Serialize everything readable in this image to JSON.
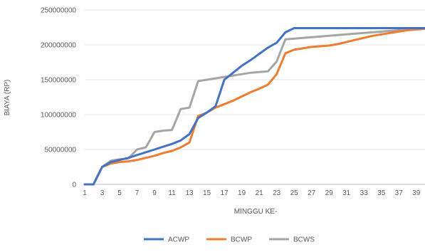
{
  "chart_data": {
    "type": "line",
    "title": "",
    "xlabel": "MINGGU KE-",
    "ylabel": "BIAYA (RP)",
    "x": [
      1,
      2,
      3,
      4,
      5,
      6,
      7,
      8,
      9,
      10,
      11,
      12,
      13,
      14,
      15,
      16,
      17,
      18,
      19,
      20,
      21,
      22,
      23,
      24,
      25,
      26,
      27,
      28,
      29,
      30,
      31,
      32,
      33,
      34,
      35,
      36,
      37,
      38,
      39,
      40
    ],
    "x_tick_labels": [
      "1",
      "3",
      "5",
      "7",
      "9",
      "11",
      "13",
      "15",
      "17",
      "19",
      "21",
      "23",
      "25",
      "27",
      "29",
      "31",
      "33",
      "35",
      "37",
      "39"
    ],
    "x_tick_values": [
      1,
      3,
      5,
      7,
      9,
      11,
      13,
      15,
      17,
      19,
      21,
      23,
      25,
      27,
      29,
      31,
      33,
      35,
      37,
      39
    ],
    "xlim": [
      1,
      40
    ],
    "ylim": [
      0,
      250000000
    ],
    "y_ticks": [
      0,
      50000000,
      100000000,
      150000000,
      200000000,
      250000000
    ],
    "y_tick_labels": [
      "0",
      "50000000",
      "100000000",
      "150000000",
      "200000000",
      "250000000"
    ],
    "grid": "horizontal",
    "legend": "bottom",
    "series": [
      {
        "name": "ACWP",
        "color": "#4472C4",
        "values": [
          0,
          0,
          25000000,
          32000000,
          35000000,
          38000000,
          42000000,
          46000000,
          50000000,
          54000000,
          58000000,
          63000000,
          72000000,
          95000000,
          103000000,
          112000000,
          150000000,
          160000000,
          170000000,
          178000000,
          187000000,
          196000000,
          203000000,
          218000000,
          224000000,
          224000000,
          224000000,
          224000000,
          224000000,
          224000000,
          224000000,
          224000000,
          224000000,
          224000000,
          224000000,
          224000000,
          224000000,
          224000000,
          224000000,
          224000000
        ]
      },
      {
        "name": "BCWP",
        "color": "#ED7D31",
        "values": [
          0,
          0,
          25000000,
          30000000,
          32000000,
          33000000,
          35000000,
          38000000,
          41000000,
          45000000,
          48000000,
          53000000,
          60000000,
          98000000,
          103000000,
          110000000,
          115000000,
          120000000,
          126000000,
          132000000,
          137000000,
          143000000,
          158000000,
          188000000,
          193000000,
          195000000,
          197000000,
          198000000,
          199000000,
          201000000,
          204000000,
          207000000,
          210000000,
          213000000,
          215000000,
          217000000,
          219000000,
          221000000,
          222000000,
          223000000
        ]
      },
      {
        "name": "BCWS",
        "color": "#A5A5A5",
        "values": [
          0,
          0,
          25000000,
          34000000,
          36000000,
          37000000,
          50000000,
          53000000,
          75000000,
          77000000,
          78000000,
          108000000,
          110000000,
          148000000,
          150000000,
          152000000,
          154000000,
          156000000,
          158000000,
          160000000,
          161000000,
          162000000,
          176000000,
          208000000,
          209000000,
          210000000,
          211000000,
          212000000,
          213000000,
          214000000,
          215000000,
          216000000,
          217000000,
          218000000,
          219000000,
          220000000,
          221000000,
          222000000,
          223000000,
          224000000
        ]
      }
    ]
  }
}
